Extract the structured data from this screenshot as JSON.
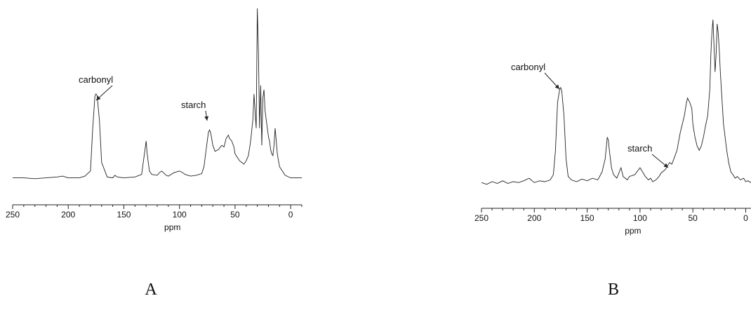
{
  "chart_data": [
    {
      "type": "line",
      "panel_label": "A",
      "xlabel": "ppm",
      "ylabel": "",
      "xlim": [
        250,
        -10
      ],
      "x_reversed": true,
      "x_ticks": [
        250,
        200,
        150,
        100,
        50,
        0
      ],
      "y_axis_visible": false,
      "grid": false,
      "series": [
        {
          "x": [
            250,
            240,
            230,
            220,
            210,
            205,
            200,
            195,
            190,
            185,
            180,
            178,
            176,
            175,
            174,
            172,
            170,
            165,
            160,
            158,
            156,
            150,
            140,
            134,
            131,
            130,
            129,
            127,
            125,
            120,
            118,
            116,
            112,
            110,
            105,
            100,
            97,
            95,
            90,
            85,
            80,
            78,
            76,
            74,
            73,
            72,
            70,
            68,
            65,
            62,
            60,
            58,
            56,
            55,
            53,
            51,
            50,
            48,
            46,
            44,
            42,
            40,
            38,
            36,
            34,
            33,
            32,
            31,
            30,
            29,
            28,
            27,
            26,
            25,
            24,
            23,
            22,
            21,
            20,
            19,
            18,
            17,
            16,
            15,
            14,
            13,
            12,
            10,
            5,
            0,
            -5,
            -10
          ],
          "y": [
            2,
            2,
            1,
            2,
            3,
            4,
            2,
            2,
            2,
            4,
            10,
            60,
            98,
            100,
            98,
            70,
            20,
            3,
            2,
            5,
            3,
            2,
            3,
            6,
            35,
            45,
            30,
            10,
            6,
            5,
            8,
            10,
            5,
            4,
            8,
            10,
            8,
            6,
            4,
            5,
            7,
            15,
            35,
            55,
            58,
            55,
            40,
            33,
            35,
            40,
            38,
            48,
            52,
            48,
            45,
            38,
            30,
            26,
            22,
            20,
            18,
            22,
            28,
            45,
            70,
            100,
            80,
            60,
            200,
            150,
            60,
            110,
            40,
            95,
            105,
            80,
            70,
            60,
            50,
            45,
            35,
            30,
            28,
            40,
            60,
            45,
            30,
            15,
            5,
            2,
            2,
            2
          ],
          "color": "#222222"
        }
      ],
      "annotations": [
        {
          "text": "carbonyl",
          "x": 175,
          "y": 100
        },
        {
          "text": "starch",
          "x": 74,
          "y": 55
        }
      ]
    },
    {
      "type": "line",
      "panel_label": "B",
      "xlabel": "ppm",
      "ylabel": "",
      "xlim": [
        250,
        -5
      ],
      "x_reversed": true,
      "x_ticks": [
        250,
        200,
        150,
        100,
        50,
        0
      ],
      "y_axis_visible": false,
      "grid": false,
      "series": [
        {
          "x": [
            250,
            245,
            240,
            235,
            230,
            225,
            220,
            215,
            210,
            205,
            200,
            195,
            190,
            185,
            182,
            180,
            178,
            176,
            175,
            174,
            172,
            170,
            168,
            165,
            160,
            155,
            150,
            145,
            140,
            136,
            133,
            131,
            130,
            129,
            127,
            125,
            122,
            120,
            118,
            116,
            114,
            112,
            110,
            105,
            100,
            97,
            95,
            92,
            90,
            88,
            85,
            82,
            80,
            78,
            76,
            74,
            72,
            70,
            68,
            65,
            62,
            60,
            58,
            56,
            55,
            53,
            51,
            50,
            48,
            46,
            44,
            42,
            40,
            38,
            36,
            34,
            33,
            32,
            31,
            30,
            29,
            28,
            27,
            26,
            25,
            24,
            23,
            22,
            21,
            20,
            19,
            18,
            16,
            14,
            12,
            10,
            8,
            5,
            2,
            0,
            -2,
            -5
          ],
          "y": [
            3,
            1,
            4,
            2,
            5,
            2,
            4,
            3,
            5,
            8,
            3,
            5,
            4,
            6,
            12,
            40,
            95,
            110,
            112,
            108,
            80,
            30,
            10,
            6,
            4,
            7,
            5,
            8,
            6,
            15,
            30,
            55,
            52,
            40,
            20,
            12,
            8,
            14,
            20,
            10,
            8,
            6,
            10,
            12,
            20,
            14,
            10,
            6,
            8,
            4,
            6,
            10,
            14,
            16,
            18,
            22,
            26,
            24,
            30,
            40,
            60,
            70,
            80,
            95,
            100,
            95,
            88,
            70,
            55,
            45,
            40,
            45,
            55,
            68,
            80,
            110,
            150,
            175,
            190,
            160,
            130,
            150,
            185,
            175,
            155,
            130,
            110,
            90,
            70,
            60,
            50,
            40,
            25,
            15,
            12,
            8,
            10,
            6,
            8,
            4,
            5,
            3
          ],
          "color": "#222222"
        }
      ],
      "annotations": [
        {
          "text": "carbonyl",
          "x": 175,
          "y": 112
        },
        {
          "text": "starch",
          "x": 72,
          "y": 26
        }
      ]
    }
  ]
}
